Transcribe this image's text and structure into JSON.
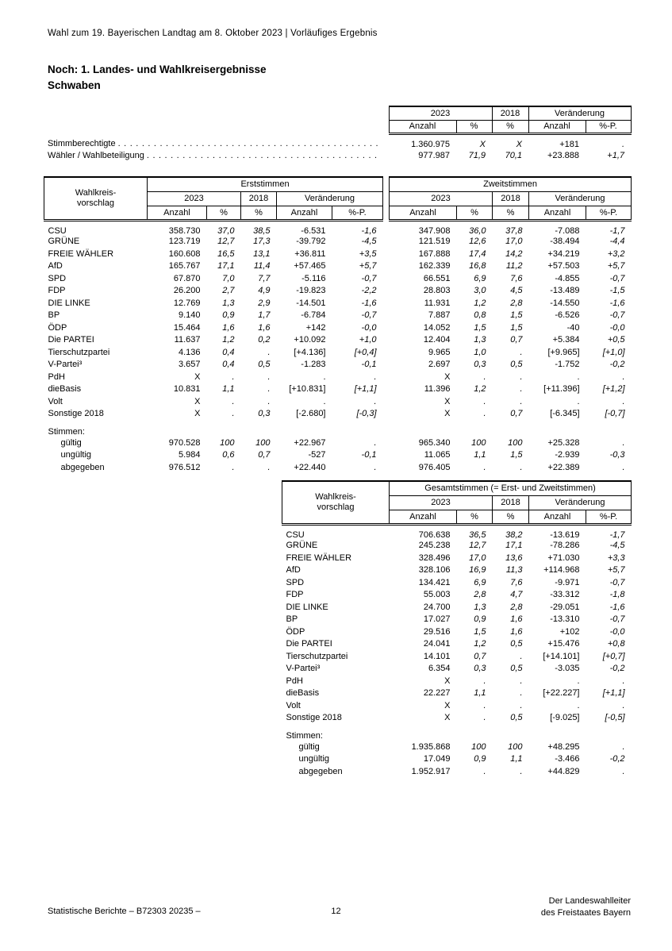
{
  "page_header": "Wahl zum 19. Bayerischen Landtag am 8. Oktober 2023 | Vorläufiges Ergebnis",
  "title": {
    "line1": "Noch: 1. Landes- und Wahlkreisergebnisse",
    "line2": "Schwaben"
  },
  "headers": {
    "stub1": "Wahlkreis-",
    "stub2": "vorschlag",
    "y2023": "2023",
    "y2018": "2018",
    "change": "Veränderung",
    "anzahl": "Anzahl",
    "pct": "%",
    "pctp": "%-P."
  },
  "summary_table": {
    "rows": [
      {
        "label": "Stimmberechtigte",
        "cells": [
          "1.360.975",
          "X",
          "X",
          "+181",
          "."
        ]
      },
      {
        "label": "Wähler / Wahlbeteiligung",
        "cells": [
          "977.987",
          "71,9",
          "70,1",
          "+23.888",
          "+1,7"
        ]
      }
    ]
  },
  "main_table": {
    "erst_header": "Erststimmen",
    "zweit_header": "Zweitstimmen",
    "rows": [
      {
        "label": "CSU",
        "erst": [
          "358.730",
          "37,0",
          "38,5",
          "-6.531",
          "-1,6"
        ],
        "zweit": [
          "347.908",
          "36,0",
          "37,8",
          "-7.088",
          "-1,7"
        ]
      },
      {
        "label": "GRÜNE",
        "erst": [
          "123.719",
          "12,7",
          "17,3",
          "-39.792",
          "-4,5"
        ],
        "zweit": [
          "121.519",
          "12,6",
          "17,0",
          "-38.494",
          "-4,4"
        ]
      },
      {
        "label": "FREIE WÄHLER",
        "erst": [
          "160.608",
          "16,5",
          "13,1",
          "+36.811",
          "+3,5"
        ],
        "zweit": [
          "167.888",
          "17,4",
          "14,2",
          "+34.219",
          "+3,2"
        ]
      },
      {
        "label": "AfD",
        "erst": [
          "165.767",
          "17,1",
          "11,4",
          "+57.465",
          "+5,7"
        ],
        "zweit": [
          "162.339",
          "16,8",
          "11,2",
          "+57.503",
          "+5,7"
        ]
      },
      {
        "label": "SPD",
        "erst": [
          "67.870",
          "7,0",
          "7,7",
          "-5.116",
          "-0,7"
        ],
        "zweit": [
          "66.551",
          "6,9",
          "7,6",
          "-4.855",
          "-0,7"
        ]
      },
      {
        "label": "FDP",
        "erst": [
          "26.200",
          "2,7",
          "4,9",
          "-19.823",
          "-2,2"
        ],
        "zweit": [
          "28.803",
          "3,0",
          "4,5",
          "-13.489",
          "-1,5"
        ]
      },
      {
        "label": "DIE LINKE",
        "erst": [
          "12.769",
          "1,3",
          "2,9",
          "-14.501",
          "-1,6"
        ],
        "zweit": [
          "11.931",
          "1,2",
          "2,8",
          "-14.550",
          "-1,6"
        ]
      },
      {
        "label": "BP",
        "erst": [
          "9.140",
          "0,9",
          "1,7",
          "-6.784",
          "-0,7"
        ],
        "zweit": [
          "7.887",
          "0,8",
          "1,5",
          "-6.526",
          "-0,7"
        ]
      },
      {
        "label": "ÖDP",
        "erst": [
          "15.464",
          "1,6",
          "1,6",
          "+142",
          "-0,0"
        ],
        "zweit": [
          "14.052",
          "1,5",
          "1,5",
          "-40",
          "-0,0"
        ]
      },
      {
        "label": "Die PARTEI",
        "erst": [
          "11.637",
          "1,2",
          "0,2",
          "+10.092",
          "+1,0"
        ],
        "zweit": [
          "12.404",
          "1,3",
          "0,7",
          "+5.384",
          "+0,5"
        ]
      },
      {
        "label": "Tierschutzpartei",
        "erst": [
          "4.136",
          "0,4",
          ".",
          "[+4.136]",
          "[+0,4]"
        ],
        "zweit": [
          "9.965",
          "1,0",
          ".",
          "[+9.965]",
          "[+1,0]"
        ]
      },
      {
        "label": "V-Partei³",
        "erst": [
          "3.657",
          "0,4",
          "0,5",
          "-1.283",
          "-0,1"
        ],
        "zweit": [
          "2.697",
          "0,3",
          "0,5",
          "-1.752",
          "-0,2"
        ]
      },
      {
        "label": "PdH",
        "erst": [
          "X",
          ".",
          ".",
          ".",
          "."
        ],
        "zweit": [
          "X",
          ".",
          ".",
          ".",
          "."
        ]
      },
      {
        "label": "dieBasis",
        "erst": [
          "10.831",
          "1,1",
          ".",
          "[+10.831]",
          "[+1,1]"
        ],
        "zweit": [
          "11.396",
          "1,2",
          ".",
          "[+11.396]",
          "[+1,2]"
        ]
      },
      {
        "label": "Volt",
        "erst": [
          "X",
          ".",
          ".",
          ".",
          "."
        ],
        "zweit": [
          "X",
          ".",
          ".",
          ".",
          "."
        ]
      },
      {
        "label": "Sonstige 2018",
        "erst": [
          "X",
          ".",
          "0,3",
          "[-2.680]",
          "[-0,3]"
        ],
        "zweit": [
          "X",
          ".",
          "0,7",
          "[-6.345]",
          "[-0,7]"
        ]
      }
    ],
    "stimmen_label": "Stimmen:",
    "stimmen_rows": [
      {
        "label": "gültig",
        "erst": [
          "970.528",
          "100",
          "100",
          "+22.967",
          "."
        ],
        "zweit": [
          "965.340",
          "100",
          "100",
          "+25.328",
          "."
        ]
      },
      {
        "label": "ungültig",
        "erst": [
          "5.984",
          "0,6",
          "0,7",
          "-527",
          "-0,1"
        ],
        "zweit": [
          "11.065",
          "1,1",
          "1,5",
          "-2.939",
          "-0,3"
        ]
      },
      {
        "label": "abgegeben",
        "erst": [
          "976.512",
          ".",
          ".",
          "+22.440",
          "."
        ],
        "zweit": [
          "976.405",
          ".",
          ".",
          "+22.389",
          "."
        ]
      }
    ]
  },
  "total_table": {
    "group_header": "Gesamtstimmen (= Erst- und Zweitstimmen)",
    "rows": [
      {
        "label": "CSU",
        "cells": [
          "706.638",
          "36,5",
          "38,2",
          "-13.619",
          "-1,7"
        ]
      },
      {
        "label": "GRÜNE",
        "cells": [
          "245.238",
          "12,7",
          "17,1",
          "-78.286",
          "-4,5"
        ]
      },
      {
        "label": "FREIE WÄHLER",
        "cells": [
          "328.496",
          "17,0",
          "13,6",
          "+71.030",
          "+3,3"
        ]
      },
      {
        "label": "AfD",
        "cells": [
          "328.106",
          "16,9",
          "11,3",
          "+114.968",
          "+5,7"
        ]
      },
      {
        "label": "SPD",
        "cells": [
          "134.421",
          "6,9",
          "7,6",
          "-9.971",
          "-0,7"
        ]
      },
      {
        "label": "FDP",
        "cells": [
          "55.003",
          "2,8",
          "4,7",
          "-33.312",
          "-1,8"
        ]
      },
      {
        "label": "DIE LINKE",
        "cells": [
          "24.700",
          "1,3",
          "2,8",
          "-29.051",
          "-1,6"
        ]
      },
      {
        "label": "BP",
        "cells": [
          "17.027",
          "0,9",
          "1,6",
          "-13.310",
          "-0,7"
        ]
      },
      {
        "label": "ÖDP",
        "cells": [
          "29.516",
          "1,5",
          "1,6",
          "+102",
          "-0,0"
        ]
      },
      {
        "label": "Die PARTEI",
        "cells": [
          "24.041",
          "1,2",
          "0,5",
          "+15.476",
          "+0,8"
        ]
      },
      {
        "label": "Tierschutzpartei",
        "cells": [
          "14.101",
          "0,7",
          ".",
          "[+14.101]",
          "[+0,7]"
        ]
      },
      {
        "label": "V-Partei³",
        "cells": [
          "6.354",
          "0,3",
          "0,5",
          "-3.035",
          "-0,2"
        ]
      },
      {
        "label": "PdH",
        "cells": [
          "X",
          ".",
          ".",
          ".",
          "."
        ]
      },
      {
        "label": "dieBasis",
        "cells": [
          "22.227",
          "1,1",
          ".",
          "[+22.227]",
          "[+1,1]"
        ]
      },
      {
        "label": "Volt",
        "cells": [
          "X",
          ".",
          ".",
          ".",
          "."
        ]
      },
      {
        "label": "Sonstige 2018",
        "cells": [
          "X",
          ".",
          "0,5",
          "[-9.025]",
          "[-0,5]"
        ]
      }
    ],
    "stimmen_label": "Stimmen:",
    "stimmen_rows": [
      {
        "label": "gültig",
        "cells": [
          "1.935.868",
          "100",
          "100",
          "+48.295",
          "."
        ]
      },
      {
        "label": "ungültig",
        "cells": [
          "17.049",
          "0,9",
          "1,1",
          "-3.466",
          "-0,2"
        ]
      },
      {
        "label": "abgegeben",
        "cells": [
          "1.952.917",
          ".",
          ".",
          "+44.829",
          "."
        ]
      }
    ]
  },
  "footer": {
    "left": "Statistische Berichte – B72303 20235 –",
    "page": "12",
    "right_line1": "Der Landeswahlleiter",
    "right_line2": "des Freistaates Bayern"
  }
}
